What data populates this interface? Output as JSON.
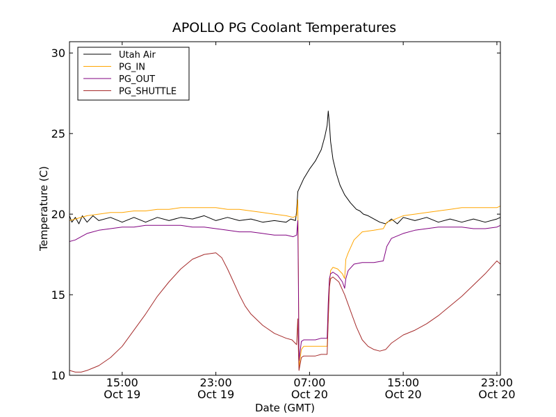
{
  "chart_data": {
    "type": "line",
    "title": "APOLLO PG Coolant Temperatures",
    "xlabel": "Date (GMT)",
    "ylabel": "Temperature (C)",
    "ylim": [
      10,
      30.7
    ],
    "xlim_hours": [
      10.5,
      47.3
    ],
    "yticks": [
      {
        "value": 10,
        "label": "10"
      },
      {
        "value": 15,
        "label": "15"
      },
      {
        "value": 20,
        "label": "20"
      },
      {
        "value": 25,
        "label": "25"
      },
      {
        "value": 30,
        "label": "30"
      }
    ],
    "xticks": [
      {
        "hour": 15,
        "time": "15:00",
        "date": "Oct 19"
      },
      {
        "hour": 23,
        "time": "23:00",
        "date": "Oct 19"
      },
      {
        "hour": 31,
        "time": "07:00",
        "date": "Oct 20"
      },
      {
        "hour": 39,
        "time": "15:00",
        "date": "Oct 20"
      },
      {
        "hour": 47,
        "time": "23:00",
        "date": "Oct 20"
      }
    ],
    "legend": {
      "position": "top-left",
      "entries": [
        {
          "name": "Utah Air",
          "color": "#000000"
        },
        {
          "name": "PG_IN",
          "color": "#ffa500"
        },
        {
          "name": "PG_OUT",
          "color": "#800080"
        },
        {
          "name": "PG_SHUTTLE",
          "color": "#a52a2a"
        }
      ]
    },
    "series": [
      {
        "name": "Utah Air",
        "color": "#000000",
        "x": [
          10.5,
          10.7,
          11.0,
          11.3,
          11.6,
          12.0,
          12.5,
          13.0,
          14.0,
          15.0,
          16.0,
          17.0,
          18.0,
          19.0,
          20.0,
          21.0,
          22.0,
          23.0,
          24.0,
          25.0,
          26.0,
          27.0,
          28.0,
          29.0,
          29.4,
          29.8,
          29.9,
          30.0,
          30.5,
          31.0,
          31.5,
          32.0,
          32.3,
          32.5,
          32.6,
          32.7,
          32.8,
          33.0,
          33.3,
          33.6,
          34.0,
          34.5,
          35.0,
          35.3,
          35.6,
          36.0,
          36.5,
          37.0,
          37.5,
          38.0,
          38.5,
          39.0,
          40.0,
          41.0,
          42.0,
          43.0,
          44.0,
          45.0,
          46.0,
          47.0,
          47.3
        ],
        "y": [
          19.9,
          19.5,
          19.8,
          19.4,
          19.9,
          19.5,
          19.9,
          19.6,
          19.8,
          19.5,
          19.8,
          19.5,
          19.8,
          19.6,
          19.8,
          19.7,
          19.9,
          19.6,
          19.8,
          19.6,
          19.7,
          19.5,
          19.6,
          19.5,
          19.7,
          19.6,
          20.2,
          21.4,
          22.2,
          22.8,
          23.3,
          24.0,
          24.8,
          25.5,
          26.4,
          25.6,
          24.5,
          23.4,
          22.5,
          21.8,
          21.2,
          20.7,
          20.3,
          20.2,
          20.0,
          19.9,
          19.7,
          19.5,
          19.4,
          19.7,
          19.4,
          19.8,
          19.6,
          19.8,
          19.5,
          19.7,
          19.5,
          19.7,
          19.5,
          19.7,
          19.8
        ]
      },
      {
        "name": "PG_IN",
        "color": "#ffa500",
        "x": [
          10.5,
          11.0,
          12.0,
          13.0,
          14.0,
          15.0,
          16.0,
          17.0,
          18.0,
          19.0,
          20.0,
          21.0,
          22.0,
          23.0,
          24.0,
          25.0,
          26.0,
          27.0,
          28.0,
          29.0,
          29.6,
          29.9,
          30.0,
          30.05,
          30.1,
          30.3,
          30.5,
          31.0,
          31.5,
          32.0,
          32.5,
          32.6,
          32.7,
          32.8,
          33.0,
          33.4,
          33.8,
          34.0,
          34.1,
          34.3,
          34.8,
          35.5,
          36.5,
          37.3,
          37.6,
          38.0,
          39.0,
          40.0,
          41.0,
          42.0,
          43.0,
          44.0,
          45.0,
          46.0,
          47.0,
          47.3
        ],
        "y": [
          19.6,
          19.7,
          19.9,
          20.0,
          20.1,
          20.1,
          20.2,
          20.2,
          20.3,
          20.3,
          20.4,
          20.4,
          20.4,
          20.4,
          20.3,
          20.3,
          20.2,
          20.1,
          20.0,
          19.9,
          19.8,
          19.9,
          20.9,
          16.4,
          10.5,
          11.6,
          11.8,
          11.8,
          11.8,
          11.8,
          11.8,
          13.5,
          15.6,
          16.5,
          16.7,
          16.6,
          16.3,
          16.0,
          17.2,
          17.6,
          18.4,
          18.9,
          19.0,
          19.1,
          19.5,
          19.6,
          19.9,
          20.0,
          20.1,
          20.2,
          20.3,
          20.4,
          20.4,
          20.4,
          20.4,
          20.5
        ]
      },
      {
        "name": "PG_OUT",
        "color": "#800080",
        "x": [
          10.5,
          11.0,
          11.5,
          12.0,
          13.0,
          14.0,
          15.0,
          16.0,
          17.0,
          18.0,
          19.0,
          20.0,
          21.0,
          22.0,
          23.0,
          24.0,
          25.0,
          26.0,
          27.0,
          28.0,
          29.0,
          29.6,
          29.9,
          30.0,
          30.05,
          30.1,
          30.3,
          30.5,
          31.0,
          31.5,
          32.0,
          32.5,
          32.6,
          32.7,
          32.8,
          33.0,
          33.4,
          33.8,
          34.0,
          34.1,
          34.3,
          34.8,
          35.5,
          36.5,
          37.3,
          37.6,
          38.0,
          39.0,
          40.0,
          41.0,
          42.0,
          43.0,
          44.0,
          45.0,
          46.0,
          47.0,
          47.3
        ],
        "y": [
          18.3,
          18.4,
          18.6,
          18.8,
          19.0,
          19.1,
          19.2,
          19.2,
          19.3,
          19.3,
          19.3,
          19.3,
          19.2,
          19.2,
          19.1,
          19.0,
          18.9,
          18.9,
          18.8,
          18.7,
          18.7,
          18.6,
          18.7,
          19.6,
          15.5,
          10.9,
          12.1,
          12.2,
          12.2,
          12.2,
          12.3,
          12.3,
          14.5,
          16.0,
          16.3,
          16.4,
          16.2,
          15.8,
          15.4,
          16.0,
          16.5,
          16.9,
          17.0,
          17.0,
          17.1,
          18.0,
          18.5,
          18.8,
          19.0,
          19.1,
          19.2,
          19.2,
          19.2,
          19.1,
          19.1,
          19.2,
          19.3
        ]
      },
      {
        "name": "PG_SHUTTLE",
        "color": "#a52a2a",
        "x": [
          10.5,
          11.0,
          11.5,
          12.0,
          13.0,
          14.0,
          15.0,
          16.0,
          17.0,
          18.0,
          19.0,
          20.0,
          21.0,
          22.0,
          23.0,
          23.5,
          24.0,
          24.5,
          25.0,
          25.5,
          26.0,
          27.0,
          28.0,
          29.0,
          29.5,
          29.9,
          30.0,
          30.05,
          30.1,
          30.3,
          30.5,
          31.0,
          31.5,
          32.0,
          32.5,
          32.6,
          32.7,
          32.8,
          33.0,
          33.5,
          34.0,
          34.5,
          35.0,
          35.5,
          36.0,
          36.5,
          37.0,
          37.5,
          38.0,
          39.0,
          40.0,
          41.0,
          42.0,
          43.0,
          44.0,
          45.0,
          46.0,
          47.0,
          47.3
        ],
        "y": [
          10.3,
          10.2,
          10.2,
          10.3,
          10.6,
          11.1,
          11.8,
          12.8,
          13.8,
          14.9,
          15.8,
          16.6,
          17.2,
          17.5,
          17.6,
          17.3,
          16.6,
          15.8,
          15.0,
          14.3,
          13.8,
          13.1,
          12.6,
          12.3,
          12.2,
          11.9,
          13.5,
          11.5,
          10.3,
          11.1,
          11.2,
          11.2,
          11.2,
          11.3,
          11.3,
          13.5,
          15.5,
          16.0,
          16.1,
          15.8,
          15.0,
          14.0,
          13.0,
          12.2,
          11.8,
          11.6,
          11.5,
          11.6,
          12.0,
          12.5,
          12.8,
          13.2,
          13.7,
          14.3,
          14.9,
          15.6,
          16.3,
          17.1,
          16.9
        ]
      }
    ]
  }
}
